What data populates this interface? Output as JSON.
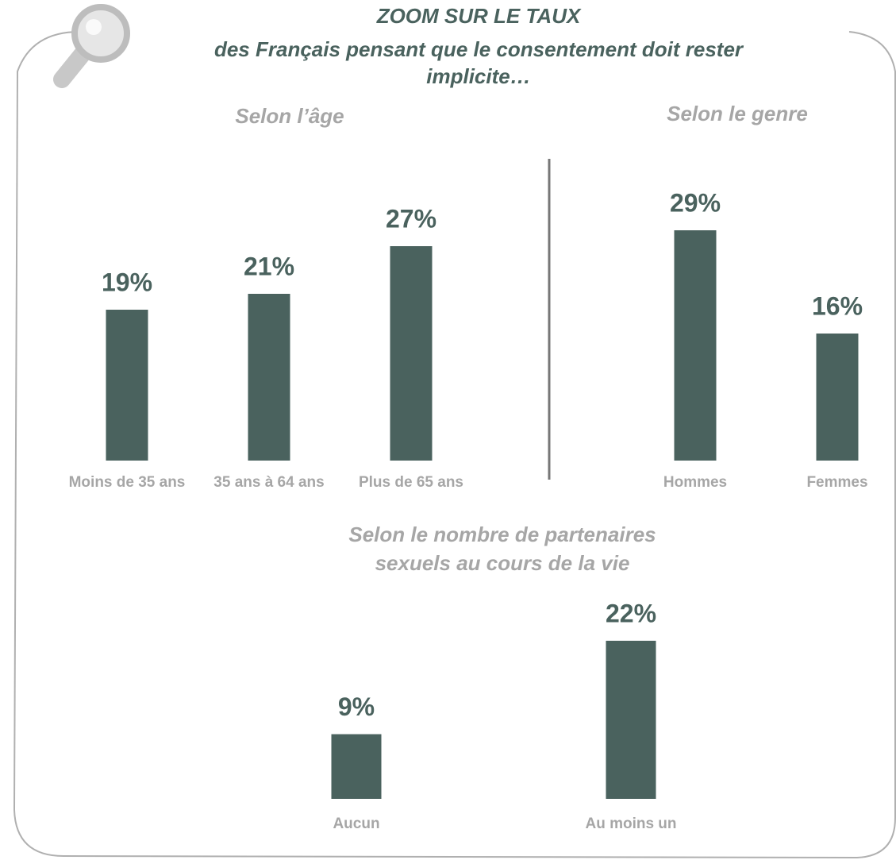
{
  "header": {
    "title": "ZOOM SUR LE TAUX",
    "subtitle": [
      "des Français pensant que le consentement doit rester",
      "implicite…"
    ]
  },
  "chart_data": [
    {
      "type": "bar",
      "title": [
        "Selon l’âge"
      ],
      "categories": [
        "Moins de 35 ans",
        "35 ans à 64 ans",
        "Plus de 65 ans"
      ],
      "values": [
        19,
        21,
        27
      ],
      "value_labels": [
        "19%",
        "21%",
        "27%"
      ],
      "color": "#4a625e"
    },
    {
      "type": "bar",
      "title": [
        "Selon le genre"
      ],
      "categories": [
        "Hommes",
        "Femmes"
      ],
      "values": [
        29,
        16
      ],
      "value_labels": [
        "29%",
        "16%"
      ],
      "color": "#4a625e"
    },
    {
      "type": "bar",
      "title": [
        "Selon le nombre de partenaires",
        "sexuels au cours de la vie"
      ],
      "categories": [
        "Aucun",
        "Au moins un"
      ],
      "values": [
        9,
        22
      ],
      "value_labels": [
        "9%",
        "22%"
      ],
      "color": "#4a625e"
    }
  ]
}
